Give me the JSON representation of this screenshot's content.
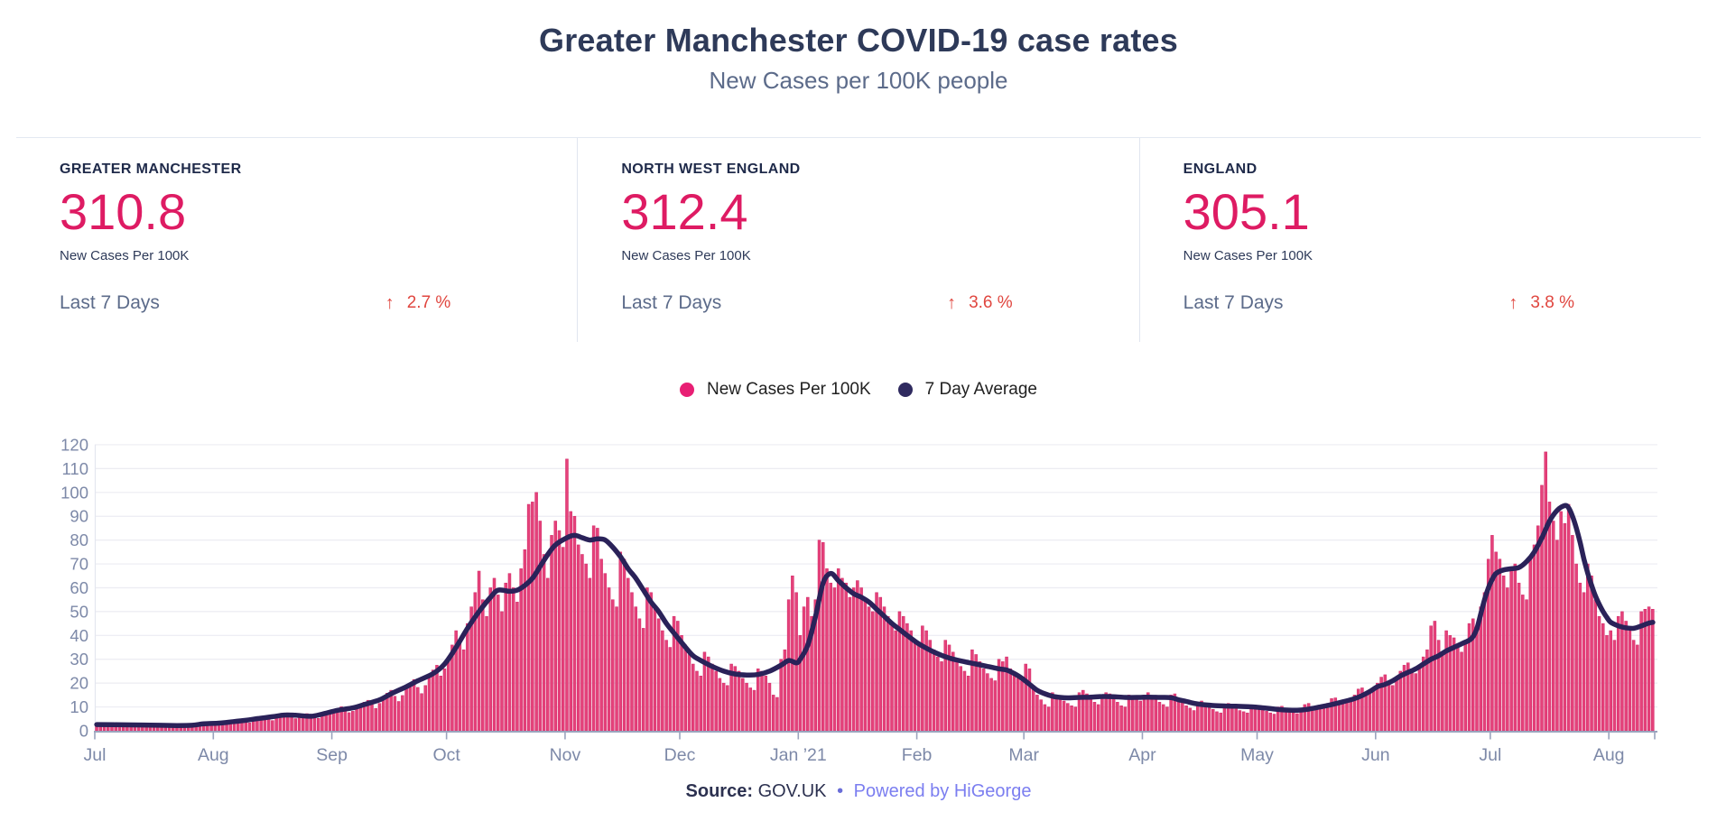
{
  "header": {
    "title": "Greater Manchester COVID-19 case rates",
    "subtitle": "New Cases per 100K people"
  },
  "stats": {
    "cards": [
      {
        "region": "GREATER MANCHESTER",
        "value": "310.8",
        "caption": "New Cases Per 100K",
        "period_label": "Last 7 Days",
        "arrow": "↑",
        "change": "2.7 %",
        "direction": "up"
      },
      {
        "region": "NORTH WEST ENGLAND",
        "value": "312.4",
        "caption": "New Cases Per 100K",
        "period_label": "Last 7 Days",
        "arrow": "↑",
        "change": "3.6 %",
        "direction": "up"
      },
      {
        "region": "ENGLAND",
        "value": "305.1",
        "caption": "New Cases Per 100K",
        "period_label": "Last 7 Days",
        "arrow": "↑",
        "change": "3.8 %",
        "direction": "up"
      }
    ]
  },
  "legend": [
    {
      "label": "New Cases Per 100K",
      "color": "#e81f74"
    },
    {
      "label": "7 Day Average",
      "color": "#2f2a5f"
    }
  ],
  "footer": {
    "source_label": "Source:",
    "source_value": "GOV.UK",
    "separator": "•",
    "powered_by": "Powered by HiGeorge"
  },
  "colors": {
    "title_text": "#2e3a59",
    "muted_text": "#5c6b8a",
    "stat_value_pink": "#de1b63",
    "change_red": "#e0463f",
    "bar_pink": "#e5417a",
    "bar_stroke": "#d12767",
    "line_navy": "#2a2259",
    "axis": "#9aa3bd",
    "axis_label": "#7d89a8",
    "grid": "#ececf2",
    "link_purple": "#7b7ef0"
  },
  "chart_data": {
    "type": "bar",
    "title": "",
    "xlabel": "",
    "ylabel": "",
    "x_unit": "day",
    "x_start": "2020-07-01",
    "ylim": [
      0,
      120
    ],
    "y_ticks": [
      0,
      10,
      20,
      30,
      40,
      50,
      60,
      70,
      80,
      90,
      100,
      110,
      120
    ],
    "x_ticks": [
      {
        "day": 0,
        "label": "Jul"
      },
      {
        "day": 31,
        "label": "Aug"
      },
      {
        "day": 62,
        "label": "Sep"
      },
      {
        "day": 92,
        "label": "Oct"
      },
      {
        "day": 123,
        "label": "Nov"
      },
      {
        "day": 153,
        "label": "Dec"
      },
      {
        "day": 184,
        "label": "Jan ’21"
      },
      {
        "day": 215,
        "label": "Feb"
      },
      {
        "day": 243,
        "label": "Mar"
      },
      {
        "day": 274,
        "label": "Apr"
      },
      {
        "day": 304,
        "label": "May"
      },
      {
        "day": 335,
        "label": "Jun"
      },
      {
        "day": 365,
        "label": "Jul"
      },
      {
        "day": 396,
        "label": "Aug"
      },
      {
        "day": 408,
        "label": ""
      }
    ],
    "grid": true,
    "legend_position": "top-center",
    "series": [
      {
        "name": "New Cases Per 100K",
        "type": "bar",
        "color": "#e5417a",
        "daily_values": [
          3,
          2.7,
          2.3,
          1.9,
          2.2,
          2.9,
          3.2,
          2.8,
          2.4,
          2,
          2.3,
          2.7,
          3,
          2.6,
          2.2,
          1.8,
          2.1,
          2.5,
          2.8,
          2.4,
          2,
          1.7,
          2,
          2.3,
          2.6,
          2.2,
          1.9,
          2.4,
          2.9,
          3.3,
          3.1,
          3.4,
          3.8,
          3,
          2.6,
          3.5,
          4.1,
          4.6,
          4.9,
          4,
          3.3,
          4.5,
          5.3,
          5.9,
          6.2,
          5.2,
          4.3,
          5.5,
          6.4,
          7.1,
          7.5,
          6.3,
          5.1,
          5.6,
          6.6,
          7.2,
          6.8,
          6,
          5.2,
          6.1,
          7,
          7.8,
          8.4,
          9.3,
          10.1,
          8.8,
          7.6,
          8.2,
          9.5,
          10.8,
          12,
          12.8,
          10.9,
          9.4,
          11.5,
          13.6,
          15.8,
          17,
          14.5,
          12.3,
          14.8,
          17.6,
          20,
          21.5,
          18.2,
          15.6,
          19,
          22.5,
          25.5,
          27.5,
          23,
          26,
          31,
          36,
          42,
          38,
          34,
          45,
          52,
          58,
          67,
          55,
          48,
          60,
          64,
          57,
          50,
          62,
          66,
          60,
          54,
          68,
          76,
          95,
          96,
          100,
          88,
          74,
          64,
          82,
          88,
          84,
          77,
          114,
          92,
          90,
          78,
          74,
          70,
          64,
          86,
          85,
          72,
          66,
          60,
          55,
          52,
          75,
          72,
          64,
          58,
          52,
          47,
          43,
          60,
          58,
          52,
          47,
          42,
          38,
          35,
          48,
          46,
          40,
          36,
          32,
          28,
          25,
          23,
          33,
          31,
          28,
          25,
          22,
          20,
          19,
          28,
          27,
          25,
          22,
          20,
          18,
          17,
          26,
          25,
          23,
          20,
          15,
          14,
          30,
          34,
          55,
          65,
          58,
          40,
          52,
          56,
          48,
          55,
          80,
          79,
          68,
          62,
          60,
          68,
          64,
          62,
          56,
          60,
          63,
          60,
          55,
          52,
          50,
          58,
          56,
          52,
          48,
          45,
          42,
          50,
          48,
          45,
          42,
          38,
          36,
          44,
          42,
          38,
          34,
          31,
          29,
          38,
          36,
          33,
          30,
          27,
          25,
          23,
          34,
          32,
          29,
          26,
          24,
          22,
          21,
          30,
          29,
          31,
          26,
          24,
          22,
          21,
          28,
          26,
          19,
          15,
          13,
          11,
          10,
          16,
          15,
          14,
          12.5,
          11.5,
          10.5,
          10,
          16,
          17,
          15.5,
          13.5,
          12,
          11,
          14.5,
          16,
          15.5,
          13.5,
          12,
          10.5,
          10,
          15,
          14.5,
          14,
          12.5,
          15,
          16,
          14.5,
          13,
          12,
          11,
          10,
          15,
          15.5,
          13.5,
          12,
          10.5,
          9.5,
          8.5,
          12,
          12.5,
          11,
          10,
          9,
          8,
          7.5,
          11,
          11.5,
          10.5,
          9.5,
          8.5,
          8,
          7.5,
          10.5,
          10.8,
          10,
          9,
          8.2,
          7.5,
          7,
          10,
          10.3,
          9.2,
          8.2,
          7.6,
          7.2,
          8,
          11,
          11.5,
          10.2,
          9.4,
          9.8,
          10.5,
          11.5,
          13.5,
          13.8,
          12.4,
          11.8,
          12.6,
          13.6,
          15,
          17.5,
          18,
          16.2,
          15.5,
          17.8,
          20,
          22.5,
          23.5,
          21,
          19,
          21.5,
          25,
          27.5,
          28.5,
          26,
          24,
          27,
          31,
          34,
          44,
          46,
          38,
          33,
          42,
          40,
          39,
          36,
          33,
          38,
          45,
          47,
          43,
          52,
          58,
          72,
          82,
          75,
          72,
          65,
          60,
          68,
          70,
          62,
          57,
          55,
          73,
          78,
          86,
          103,
          117,
          96,
          88,
          80,
          92,
          87,
          95,
          82,
          70,
          62,
          58,
          70,
          65,
          55,
          48,
          45,
          40,
          42,
          38,
          48,
          50,
          46,
          42,
          38,
          36,
          50,
          51,
          52,
          51
        ]
      },
      {
        "name": "7 Day Average",
        "type": "line",
        "color": "#2a2259",
        "anchors": [
          [
            0,
            2.6
          ],
          [
            7,
            2.5
          ],
          [
            14,
            2.4
          ],
          [
            21,
            2.2
          ],
          [
            25,
            2.3
          ],
          [
            28,
            2.9
          ],
          [
            32,
            3.2
          ],
          [
            35,
            3.7
          ],
          [
            39,
            4.4
          ],
          [
            42,
            5.1
          ],
          [
            46,
            5.9
          ],
          [
            49,
            6.6
          ],
          [
            52,
            6.5
          ],
          [
            56,
            6.1
          ],
          [
            59,
            7
          ],
          [
            63,
            8.6
          ],
          [
            67,
            9.6
          ],
          [
            70,
            11
          ],
          [
            74,
            13
          ],
          [
            77,
            15.5
          ],
          [
            81,
            18.5
          ],
          [
            84,
            21
          ],
          [
            88,
            24
          ],
          [
            91,
            28
          ],
          [
            94,
            35
          ],
          [
            97,
            43
          ],
          [
            100,
            50
          ],
          [
            103,
            56
          ],
          [
            105,
            59
          ],
          [
            108,
            58.5
          ],
          [
            110,
            59
          ],
          [
            112,
            61
          ],
          [
            114,
            64
          ],
          [
            116,
            69
          ],
          [
            118,
            74
          ],
          [
            120,
            78
          ],
          [
            123,
            81
          ],
          [
            125,
            82
          ],
          [
            127,
            81
          ],
          [
            129,
            80
          ],
          [
            131,
            80.5
          ],
          [
            133,
            80
          ],
          [
            135,
            77
          ],
          [
            137,
            73
          ],
          [
            139,
            68
          ],
          [
            141,
            64
          ],
          [
            143,
            59
          ],
          [
            145,
            54
          ],
          [
            147,
            50
          ],
          [
            149,
            45
          ],
          [
            151,
            41
          ],
          [
            154,
            35
          ],
          [
            156,
            31.5
          ],
          [
            158,
            29.5
          ],
          [
            161,
            27
          ],
          [
            164,
            25
          ],
          [
            167,
            23.8
          ],
          [
            170,
            23.4
          ],
          [
            173,
            23.6
          ],
          [
            176,
            25
          ],
          [
            179,
            27.5
          ],
          [
            181,
            29.5
          ],
          [
            183,
            28.5
          ],
          [
            184,
            30
          ],
          [
            186,
            36
          ],
          [
            188,
            48
          ],
          [
            190,
            62
          ],
          [
            192,
            66
          ],
          [
            194,
            63
          ],
          [
            196,
            60
          ],
          [
            198,
            57.5
          ],
          [
            200,
            56
          ],
          [
            202,
            54
          ],
          [
            204,
            51
          ],
          [
            206,
            48
          ],
          [
            208,
            45
          ],
          [
            210,
            42.5
          ],
          [
            212,
            40
          ],
          [
            215,
            36.5
          ],
          [
            219,
            33
          ],
          [
            223,
            30.5
          ],
          [
            227,
            29
          ],
          [
            230,
            28
          ],
          [
            233,
            27
          ],
          [
            236,
            26
          ],
          [
            238,
            25.5
          ],
          [
            240,
            24
          ],
          [
            242,
            22
          ],
          [
            244,
            19.5
          ],
          [
            246,
            17
          ],
          [
            248,
            15.5
          ],
          [
            250,
            14.5
          ],
          [
            252,
            14
          ],
          [
            254,
            13.8
          ],
          [
            257,
            14
          ],
          [
            260,
            14.1
          ],
          [
            263,
            14.4
          ],
          [
            266,
            14.3
          ],
          [
            269,
            14
          ],
          [
            272,
            14
          ],
          [
            275,
            14.1
          ],
          [
            278,
            14
          ],
          [
            281,
            13.9
          ],
          [
            283,
            13
          ],
          [
            285,
            12.3
          ],
          [
            287,
            11.5
          ],
          [
            289,
            11
          ],
          [
            292,
            10.6
          ],
          [
            295,
            10.4
          ],
          [
            298,
            10.3
          ],
          [
            301,
            10.1
          ],
          [
            304,
            9.8
          ],
          [
            307,
            9.3
          ],
          [
            310,
            8.8
          ],
          [
            313,
            8.6
          ],
          [
            315,
            8.7
          ],
          [
            317,
            9.1
          ],
          [
            320,
            10
          ],
          [
            323,
            11
          ],
          [
            326,
            12.2
          ],
          [
            329,
            13.5
          ],
          [
            331,
            14.8
          ],
          [
            333,
            16.5
          ],
          [
            335,
            18.5
          ],
          [
            337,
            19.5
          ],
          [
            339,
            21
          ],
          [
            341,
            23
          ],
          [
            343,
            24.5
          ],
          [
            345,
            26
          ],
          [
            347,
            28
          ],
          [
            349,
            30
          ],
          [
            351,
            31.5
          ],
          [
            353,
            33.5
          ],
          [
            355,
            35
          ],
          [
            357,
            36.5
          ],
          [
            359,
            38
          ],
          [
            360,
            39.5
          ],
          [
            361,
            43
          ],
          [
            362,
            49
          ],
          [
            363,
            55
          ],
          [
            364,
            60
          ],
          [
            365,
            63.5
          ],
          [
            366,
            66
          ],
          [
            368,
            67.5
          ],
          [
            370,
            68
          ],
          [
            372,
            68.5
          ],
          [
            374,
            71
          ],
          [
            376,
            75
          ],
          [
            378,
            81
          ],
          [
            380,
            88
          ],
          [
            382,
            92.5
          ],
          [
            384,
            94.5
          ],
          [
            385,
            93.5
          ],
          [
            386,
            90
          ],
          [
            387,
            85
          ],
          [
            388,
            79
          ],
          [
            389,
            72
          ],
          [
            390,
            66
          ],
          [
            391,
            61
          ],
          [
            392,
            56.5
          ],
          [
            393,
            53
          ],
          [
            394,
            50
          ],
          [
            395,
            47.5
          ],
          [
            396,
            45.5
          ],
          [
            398,
            44
          ],
          [
            400,
            43.2
          ],
          [
            402,
            43
          ],
          [
            404,
            44
          ],
          [
            406,
            45.2
          ],
          [
            407,
            45.5
          ]
        ]
      }
    ]
  }
}
